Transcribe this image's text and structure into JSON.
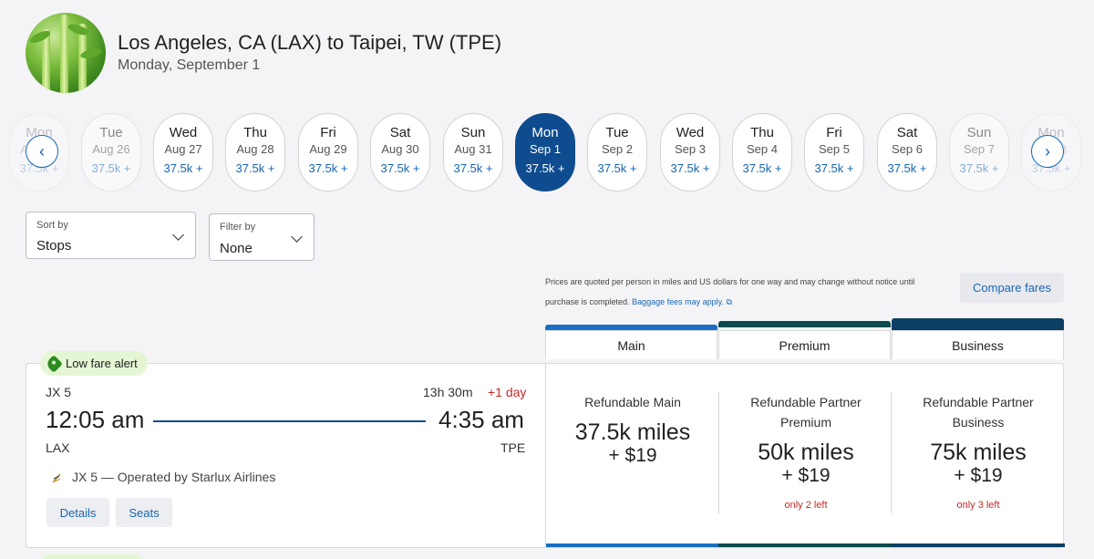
{
  "header": {
    "title": "Los Angeles, CA (LAX) to Taipei, TW (TPE)",
    "subtitle": "Monday, September 1"
  },
  "dates": [
    {
      "weekday": "Mon",
      "date": "Aug 25",
      "price": "37.5k +"
    },
    {
      "weekday": "Tue",
      "date": "Aug 26",
      "price": "37.5k +"
    },
    {
      "weekday": "Wed",
      "date": "Aug 27",
      "price": "37.5k +"
    },
    {
      "weekday": "Thu",
      "date": "Aug 28",
      "price": "37.5k +"
    },
    {
      "weekday": "Fri",
      "date": "Aug 29",
      "price": "37.5k +"
    },
    {
      "weekday": "Sat",
      "date": "Aug 30",
      "price": "37.5k +"
    },
    {
      "weekday": "Sun",
      "date": "Aug 31",
      "price": "37.5k +"
    },
    {
      "weekday": "Mon",
      "date": "Sep 1",
      "price": "37.5k +"
    },
    {
      "weekday": "Tue",
      "date": "Sep 2",
      "price": "37.5k +"
    },
    {
      "weekday": "Wed",
      "date": "Sep 3",
      "price": "37.5k +"
    },
    {
      "weekday": "Thu",
      "date": "Sep 4",
      "price": "37.5k +"
    },
    {
      "weekday": "Fri",
      "date": "Sep 5",
      "price": "37.5k +"
    },
    {
      "weekday": "Sat",
      "date": "Sep 6",
      "price": "37.5k +"
    },
    {
      "weekday": "Sun",
      "date": "Sep 7",
      "price": "37.5k +"
    },
    {
      "weekday": "Mon",
      "date": "Sep 8",
      "price": "37.5k +"
    }
  ],
  "sort": {
    "label": "Sort by",
    "value": "Stops"
  },
  "filter": {
    "label": "Filter by",
    "value": "None"
  },
  "notice": {
    "text": "Prices are quoted per person in miles and US dollars for one way and may change without notice until purchase is completed.",
    "link": "Baggage fees may apply."
  },
  "compare_label": "Compare fares",
  "tabs": {
    "main": "Main",
    "premium": "Premium",
    "business": "Business"
  },
  "colors": {
    "main": "#1a6fc4",
    "premium": "#0b4a4f",
    "business": "#0b3f63",
    "selected": "#0f4c8f"
  },
  "flight": {
    "alert": "Low fare alert",
    "code": "JX 5",
    "duration": "13h 30m",
    "day_offset": "+1 day",
    "depart_time": "12:05 am",
    "arrive_time": "4:35 am",
    "from": "LAX",
    "to": "TPE",
    "operated": "JX 5 — Operated by Starlux Airlines",
    "details_label": "Details",
    "seats_label": "Seats"
  },
  "fares": [
    {
      "name": "Refundable Main",
      "miles": "37.5k miles",
      "cash": "+ $19",
      "left": ""
    },
    {
      "name": "Refundable Partner Premium",
      "miles": "50k miles",
      "cash": "+ $19",
      "left": "only 2 left"
    },
    {
      "name": "Refundable Partner Business",
      "miles": "75k miles",
      "cash": "+ $19",
      "left": "only 3 left"
    }
  ]
}
